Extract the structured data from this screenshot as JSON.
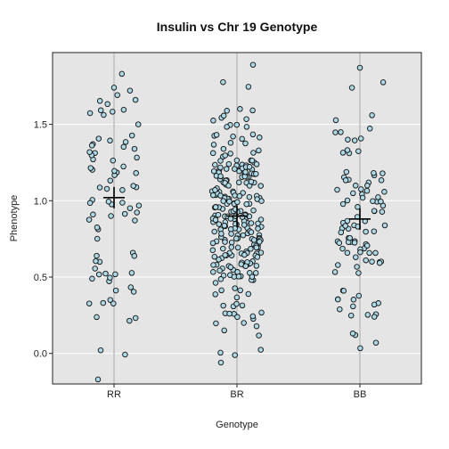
{
  "chart_data": {
    "type": "scatter",
    "title": "Insulin vs Chr 19 Genotype",
    "xlabel": "Genotype",
    "ylabel": "Phenotype",
    "categories": [
      "RR",
      "BR",
      "BB"
    ],
    "ylim": [
      -0.2,
      1.97
    ],
    "yticks": [
      0.0,
      0.5,
      1.0,
      1.5
    ],
    "ytick_labels": [
      "0.0",
      "0.5",
      "1.0",
      "1.5"
    ],
    "grid": true,
    "jitter_points": true,
    "point_counts": [
      80,
      260,
      100
    ],
    "group_means": [
      1.02,
      0.9,
      0.88
    ],
    "point_color": "#add8e6",
    "point_stroke": "#111111",
    "panel_background": "#e5e5e5",
    "gridline_color": "#ffffff",
    "category_line_color": "#c8c8c8",
    "extreme_points": [
      {
        "category": "RR",
        "y": -0.17
      },
      {
        "category": "RR",
        "y": 1.74
      },
      {
        "category": "BR",
        "y": 1.89
      },
      {
        "category": "BR",
        "y": -0.06
      },
      {
        "category": "BB",
        "y": 1.87
      },
      {
        "category": "BB",
        "y": 0.07
      }
    ]
  }
}
